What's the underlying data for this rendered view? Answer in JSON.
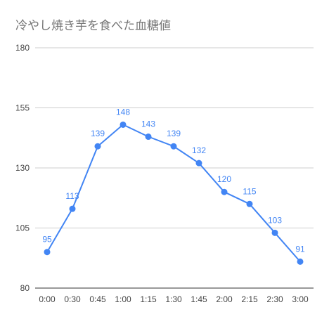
{
  "chart_data": {
    "type": "line",
    "title": "冷やし焼き芋を食べた血糖値",
    "categories": [
      "0:00",
      "0:30",
      "0:45",
      "1:00",
      "1:15",
      "1:30",
      "1:45",
      "2:00",
      "2:15",
      "2:30",
      "3:00"
    ],
    "series": [
      {
        "values": [
          95,
          113,
          139,
          148,
          143,
          139,
          132,
          120,
          115,
          103,
          91
        ],
        "color": "#4285F4"
      }
    ],
    "data_labels": [
      "95",
      "113",
      "139",
      "148",
      "143",
      "139",
      "132",
      "120",
      "115",
      "103",
      "91"
    ],
    "yticks": [
      80,
      105,
      130,
      155,
      180
    ],
    "ytick_labels": [
      "80",
      "105",
      "130",
      "155",
      "180"
    ],
    "ylim": [
      80,
      180
    ],
    "grid": true,
    "legend": "none",
    "colors": {
      "line": "#4285F4",
      "grid": "#cccccc",
      "baseline": "#333333",
      "title": "#757575",
      "tick_text": "#444444"
    }
  }
}
